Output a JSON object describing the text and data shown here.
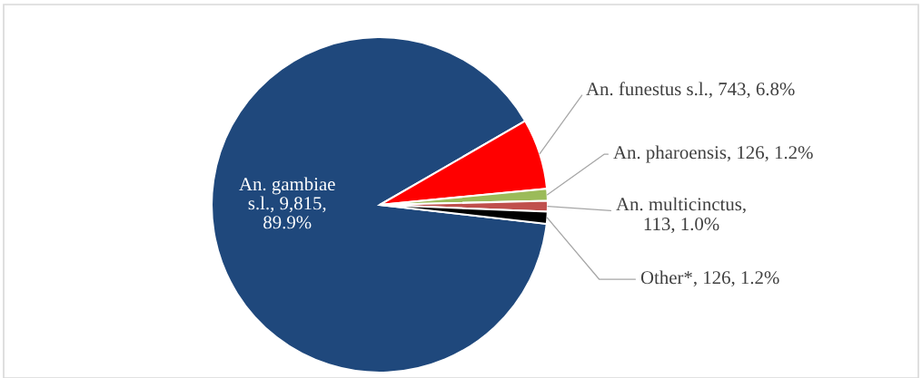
{
  "chart_data": {
    "type": "pie",
    "categories": [
      "An. gambiae\ns.l., 9,815,\n89.9%",
      "An. funestus s.l., 743, 6.8%",
      "An. pharoensis, 126, 1.2%",
      "An. multicinctus,\n113, 1.0%",
      "Other*, 126, 1.2%"
    ],
    "values": [
      9815,
      743,
      126,
      113,
      126
    ],
    "colors": [
      "#1f487c",
      "#ff0000",
      "#9bbb59",
      "#c0504d",
      "#000000"
    ],
    "legend": false
  }
}
